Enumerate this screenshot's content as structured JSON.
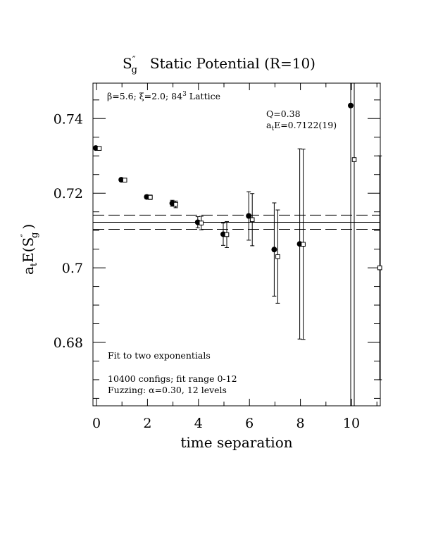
{
  "chart_data": {
    "type": "scatter",
    "title_main": "S",
    "title_rest": "Static Potential (R=10)",
    "ylabel_main": "a",
    "ylabel_sub": "t",
    "ylabel_rest": "E(S",
    "ylabel_close": ")",
    "sg_prime": "″",
    "sg_sub": "g",
    "xlabel": "time separation",
    "xlim": [
      0,
      11
    ],
    "ylim": [
      0.663,
      0.7495
    ],
    "xticks": [
      "0",
      "2",
      "4",
      "6",
      "8",
      "10"
    ],
    "yticks": [
      "0.68",
      "0.7",
      "0.72",
      "0.74"
    ],
    "annotations": {
      "lattice_pre": "β=5.6; ξ=2.0; 84",
      "lattice_sup": "3",
      "lattice_post": " Lattice",
      "q": "Q=0.38",
      "fit_prefix": "a",
      "fit_sub": "t",
      "fit_suffix": "E=0.7122(19)",
      "fit_desc": "Fit to two exponentials",
      "configs": "10400 configs; fit range 0-12",
      "fuzzing": "Fuzzing: α=0.30, 12 levels"
    },
    "fit": {
      "value": 0.7122,
      "error": 0.0019,
      "xrange": [
        0,
        12
      ]
    },
    "series": [
      {
        "marker": "filled-circle",
        "points": [
          {
            "x": 0,
            "y": 0.7321,
            "err": 0.0003
          },
          {
            "x": 1,
            "y": 0.7236,
            "err": 0.0004
          },
          {
            "x": 2,
            "y": 0.719,
            "err": 0.0005
          },
          {
            "x": 3,
            "y": 0.7173,
            "err": 0.0008
          },
          {
            "x": 4,
            "y": 0.7122,
            "err": 0.0015
          },
          {
            "x": 5,
            "y": 0.709,
            "err": 0.003
          },
          {
            "x": 6,
            "y": 0.7139,
            "err": 0.0065
          },
          {
            "x": 7,
            "y": 0.7049,
            "err": 0.0125
          },
          {
            "x": 8,
            "y": 0.7064,
            "err": 0.0255
          },
          {
            "x": 10,
            "y": 0.7435,
            "err": 0.12
          }
        ]
      },
      {
        "marker": "open-square",
        "points": [
          {
            "x": 0,
            "y": 0.732,
            "err": 0.0004
          },
          {
            "x": 1,
            "y": 0.7235,
            "err": 0.0005
          },
          {
            "x": 2,
            "y": 0.7189,
            "err": 0.0006
          },
          {
            "x": 3,
            "y": 0.717,
            "err": 0.0009
          },
          {
            "x": 4,
            "y": 0.712,
            "err": 0.0018
          },
          {
            "x": 5,
            "y": 0.7089,
            "err": 0.0035
          },
          {
            "x": 6,
            "y": 0.7129,
            "err": 0.007
          },
          {
            "x": 7,
            "y": 0.703,
            "err": 0.0125
          },
          {
            "x": 8,
            "y": 0.7063,
            "err": 0.0255
          },
          {
            "x": 10,
            "y": 0.729,
            "err": 0.09
          },
          {
            "x": 11,
            "y": 0.7,
            "err": 0.03
          }
        ]
      }
    ]
  }
}
